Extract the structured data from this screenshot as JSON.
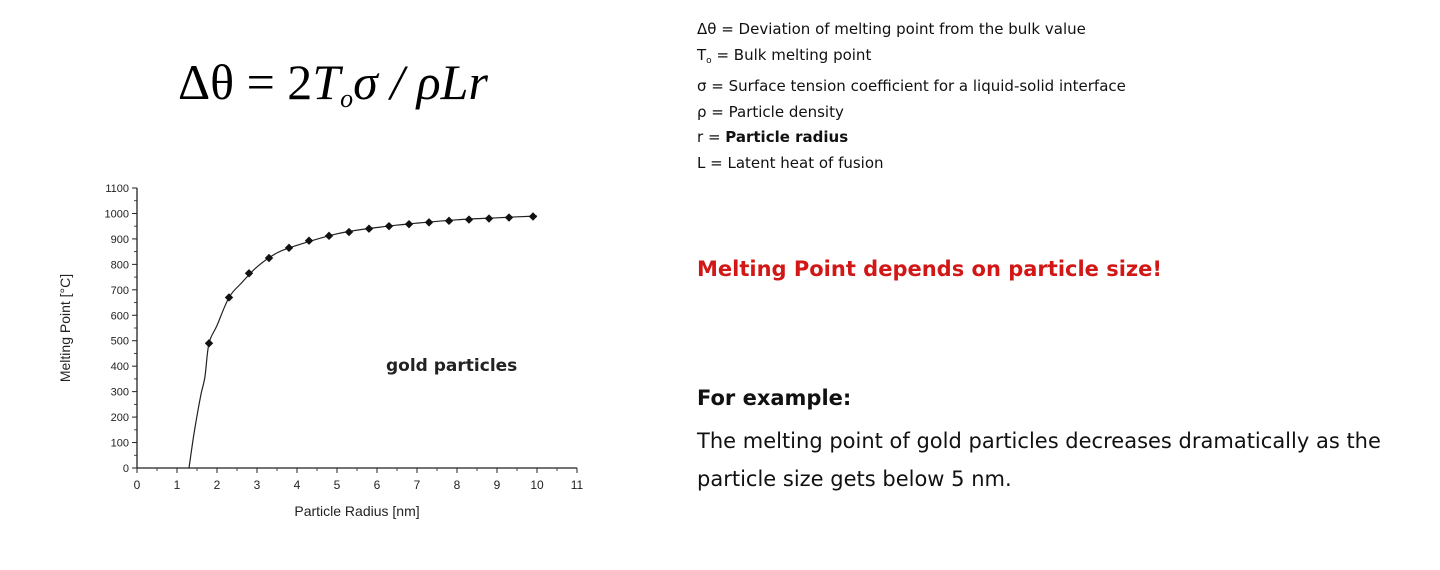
{
  "formula": {
    "delta": "Δθ",
    "equals": " = 2",
    "T": "T",
    "sub": "o",
    "rest": "σ / ρLr"
  },
  "definitions": [
    {
      "symbol": "Δθ",
      "sub": "",
      "text": " = Deviation of melting point from the bulk value",
      "bold": false
    },
    {
      "symbol": "T",
      "sub": "o",
      "text": " = Bulk melting point",
      "bold": false
    },
    {
      "symbol": "σ",
      "sub": "",
      "text": " = Surface tension coefficient for a liquid-solid interface",
      "bold": false
    },
    {
      "symbol": "ρ",
      "sub": "",
      "text": " = Particle density",
      "bold": false
    },
    {
      "symbol": "r",
      "sub": "",
      "text": " = ",
      "bold_text": "Particle radius",
      "bold": true
    },
    {
      "symbol": "L",
      "sub": "",
      "text": " = Latent heat of fusion",
      "bold": false
    }
  ],
  "chart_data": {
    "type": "scatter",
    "xlabel": "Particle Radius [nm]",
    "ylabel": "Melting Point [°C]",
    "xlim": [
      0,
      11
    ],
    "ylim": [
      0,
      1100
    ],
    "xticks": [
      0,
      1,
      2,
      3,
      4,
      5,
      6,
      7,
      8,
      9,
      10,
      11
    ],
    "yticks": [
      0,
      100,
      200,
      300,
      400,
      500,
      600,
      700,
      800,
      900,
      1000,
      1100
    ],
    "annotation": "gold particles",
    "grid": false,
    "series": [
      {
        "x": [
          1.8,
          2.3,
          2.8,
          3.3,
          3.8,
          4.3,
          4.8,
          5.3,
          5.8,
          6.3,
          6.8,
          7.3,
          7.8,
          8.3,
          8.8,
          9.3,
          9.9
        ],
        "y": [
          490,
          670,
          765,
          825,
          865,
          893,
          912,
          927,
          940,
          950,
          958,
          965,
          971,
          976,
          980,
          984,
          988
        ]
      }
    ],
    "fit_curve": {
      "x": [
        1.3,
        1.4,
        1.5,
        1.6,
        1.7,
        1.8,
        2.0,
        2.3,
        2.6,
        3.0,
        3.5,
        4.0,
        5.0,
        6.0,
        7.0,
        8.0,
        9.0,
        10.0
      ],
      "y": [
        0,
        110,
        205,
        290,
        360,
        490,
        560,
        670,
        725,
        790,
        845,
        875,
        920,
        945,
        962,
        975,
        983,
        990
      ]
    }
  },
  "headline": "Melting Point depends on particle size!",
  "example_title": "For example:",
  "example_body": "The melting point of gold particles decreases dramatically as the particle size gets below 5 nm."
}
